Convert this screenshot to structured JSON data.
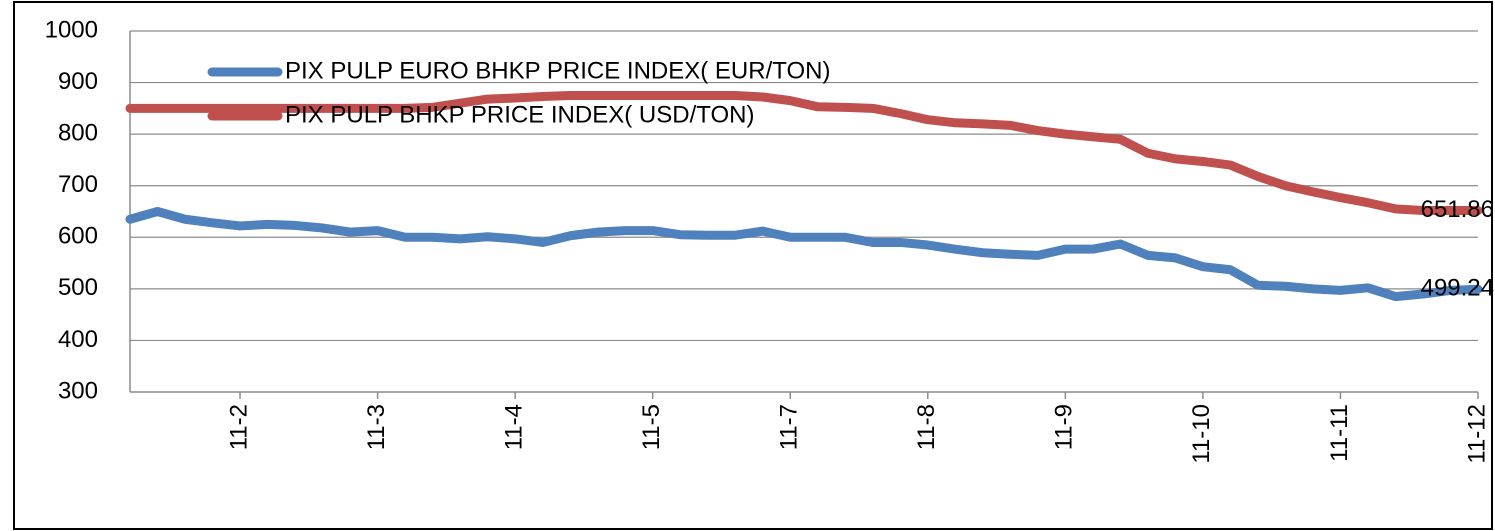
{
  "chart_data": {
    "type": "line",
    "categories": [
      null,
      null,
      null,
      null,
      "11-2",
      null,
      null,
      null,
      null,
      "11-3",
      null,
      null,
      null,
      null,
      "11-4",
      null,
      null,
      null,
      null,
      "11-5",
      null,
      null,
      null,
      null,
      "11-7",
      null,
      null,
      null,
      null,
      "11-8",
      null,
      null,
      null,
      null,
      "11-9",
      null,
      null,
      null,
      null,
      "11-10",
      null,
      null,
      null,
      null,
      "11-11",
      null,
      null,
      null,
      null,
      "11-12"
    ],
    "series": [
      {
        "name": "PIX PULP EURO  BHKP PRICE INDEX( EUR/TON)",
        "color": "#4f81bd",
        "values": [
          635,
          650,
          635,
          628,
          622,
          625,
          623,
          618,
          610,
          613,
          600,
          600,
          597,
          601,
          597,
          590,
          603,
          610,
          613,
          613,
          605,
          604,
          604,
          612,
          600,
          600,
          600,
          590,
          590,
          585,
          577,
          570,
          567,
          565,
          577,
          577,
          587,
          565,
          560,
          543,
          537,
          507,
          505,
          500,
          497,
          502,
          485,
          490,
          497,
          499.24
        ]
      },
      {
        "name": "PIX PULP BHKP PRICE INDEX( USD/TON)",
        "color": "#c0504d",
        "values": [
          850,
          850,
          850,
          850,
          850,
          850,
          850,
          850,
          850,
          850,
          850,
          852,
          860,
          868,
          870,
          873,
          875,
          875,
          875,
          875,
          875,
          875,
          875,
          872,
          865,
          853,
          852,
          850,
          840,
          828,
          822,
          820,
          817,
          807,
          800,
          795,
          790,
          763,
          752,
          747,
          740,
          718,
          700,
          688,
          677,
          667,
          655,
          652,
          652,
          651.86
        ]
      }
    ],
    "ylim": [
      300,
      1000
    ],
    "yticks": [
      300,
      400,
      500,
      600,
      700,
      800,
      900,
      1000
    ],
    "grid": true
  }
}
